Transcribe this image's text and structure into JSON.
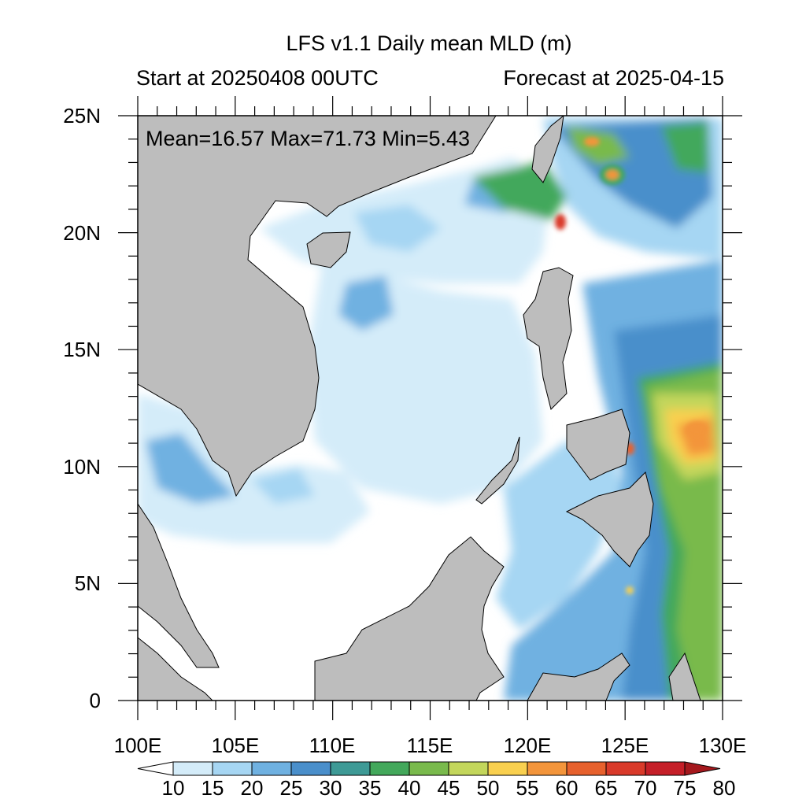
{
  "figure": {
    "title": "LFS v1.1 Daily mean MLD (m)",
    "start_label": "Start at 20250408 00UTC",
    "forecast_label": "Forecast at 2025-04-15",
    "stats_label": "Mean=16.57  Max=71.73  Min=5.43"
  },
  "map_data": {
    "type": "filled-contour-map",
    "variable": "Daily mean MLD (m)",
    "lon_range": [
      100,
      130
    ],
    "lat_range": [
      0,
      25
    ],
    "lat_labels": [
      "25N",
      "20N",
      "15N",
      "10N",
      "5N",
      "0"
    ],
    "lat_values": [
      25,
      20,
      15,
      10,
      5,
      0
    ],
    "lon_labels": [
      "100E",
      "105E",
      "110E",
      "115E",
      "120E",
      "125E",
      "130E"
    ],
    "lon_values": [
      100,
      105,
      110,
      115,
      120,
      125,
      130
    ],
    "stats": {
      "mean": 16.57,
      "max": 71.73,
      "min": 5.43
    },
    "land_color": "#bdbdbd",
    "colorbar": {
      "levels": [
        "10",
        "15",
        "20",
        "25",
        "30",
        "35",
        "40",
        "45",
        "50",
        "55",
        "60",
        "65",
        "70",
        "75",
        "80"
      ],
      "colors": [
        "#ffffff",
        "#d4ecf9",
        "#a6d6f3",
        "#6fb1e1",
        "#4a8fcb",
        "#3e9a96",
        "#43a85b",
        "#79ba4c",
        "#c3d65b",
        "#f9d04f",
        "#f3953b",
        "#e7612d",
        "#d93a2a",
        "#c51f28",
        "#a5181d"
      ]
    }
  }
}
